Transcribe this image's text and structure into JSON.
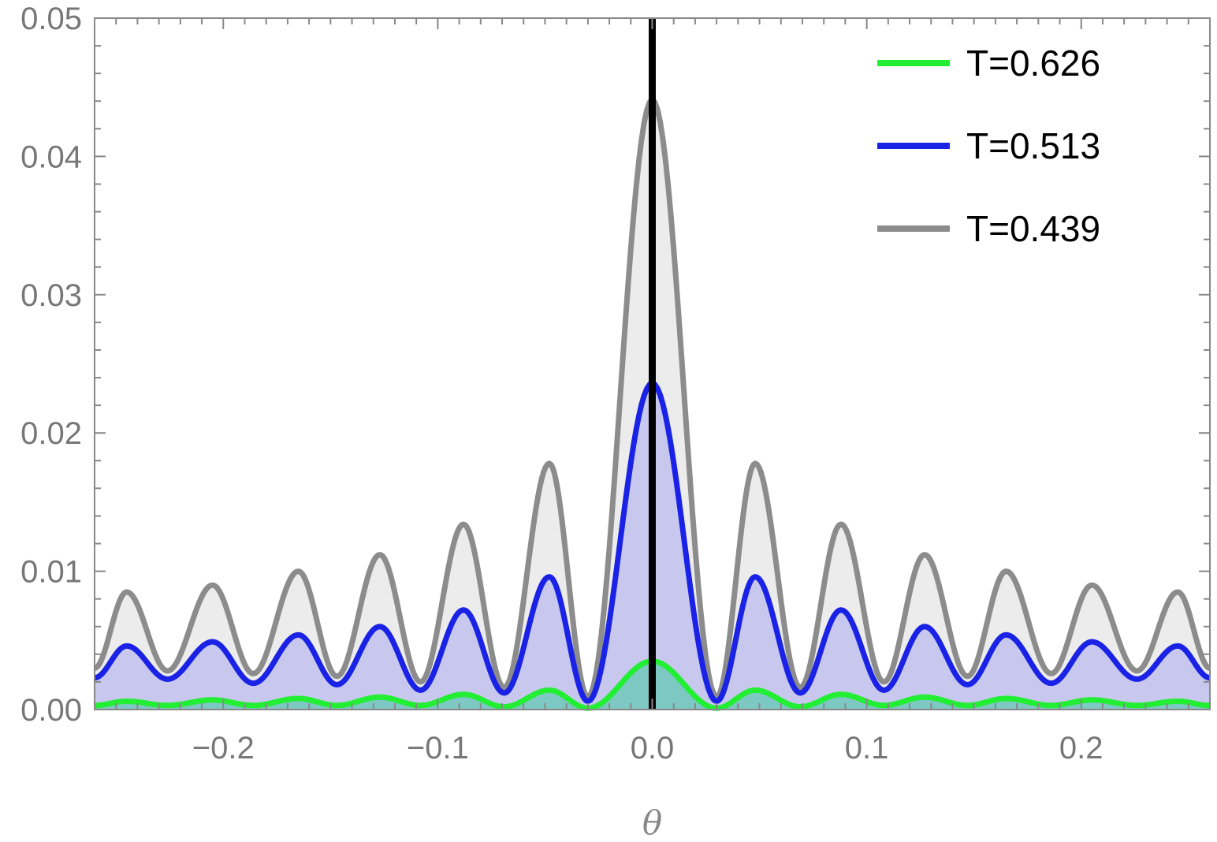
{
  "chart_data": {
    "type": "line",
    "title": "",
    "xlabel": "θ",
    "ylabel": "",
    "xlim": [
      -0.26,
      0.26
    ],
    "ylim": [
      0,
      0.05
    ],
    "x_ticks": [
      {
        "value": -0.2,
        "label": "−0.2"
      },
      {
        "value": -0.1,
        "label": "−0.1"
      },
      {
        "value": 0.0,
        "label": "0.0"
      },
      {
        "value": 0.1,
        "label": "0.1"
      },
      {
        "value": 0.2,
        "label": "0.2"
      }
    ],
    "y_ticks": [
      {
        "value": 0.0,
        "label": "0.00"
      },
      {
        "value": 0.01,
        "label": "0.01"
      },
      {
        "value": 0.02,
        "label": "0.02"
      },
      {
        "value": 0.03,
        "label": "0.03"
      },
      {
        "value": 0.04,
        "label": "0.04"
      },
      {
        "value": 0.05,
        "label": "0.05"
      }
    ],
    "grid": false,
    "legend_position": "top-right",
    "vertical_line_x": 0.0,
    "series": [
      {
        "name": "T=0.626",
        "color": "#22ee33",
        "fill": "#66c8b4",
        "x": [
          -0.26,
          -0.245,
          -0.226,
          -0.205,
          -0.186,
          -0.165,
          -0.147,
          -0.127,
          -0.108,
          -0.088,
          -0.069,
          -0.048,
          -0.03,
          0.0,
          0.03,
          0.048,
          0.069,
          0.088,
          0.108,
          0.127,
          0.147,
          0.165,
          0.186,
          0.205,
          0.226,
          0.245,
          0.26
        ],
        "y": [
          0.0003,
          0.0006,
          0.0003,
          0.0007,
          0.0003,
          0.0008,
          0.0003,
          0.0009,
          0.0003,
          0.0011,
          0.0002,
          0.0014,
          0.0001,
          0.0035,
          0.0001,
          0.0014,
          0.0002,
          0.0011,
          0.0003,
          0.0009,
          0.0003,
          0.0008,
          0.0003,
          0.0007,
          0.0003,
          0.0006,
          0.0003
        ]
      },
      {
        "name": "T=0.513",
        "color": "#1a22e6",
        "fill": "#c8c8ee",
        "x": [
          -0.26,
          -0.245,
          -0.226,
          -0.205,
          -0.186,
          -0.165,
          -0.147,
          -0.127,
          -0.108,
          -0.088,
          -0.069,
          -0.048,
          -0.03,
          0.0,
          0.03,
          0.048,
          0.069,
          0.088,
          0.108,
          0.127,
          0.147,
          0.165,
          0.186,
          0.205,
          0.226,
          0.245,
          0.26
        ],
        "y": [
          0.0023,
          0.0046,
          0.0022,
          0.0049,
          0.0019,
          0.0054,
          0.0018,
          0.006,
          0.0014,
          0.0072,
          0.0012,
          0.0096,
          0.0006,
          0.0236,
          0.0006,
          0.0096,
          0.0012,
          0.0072,
          0.0014,
          0.006,
          0.0018,
          0.0054,
          0.0019,
          0.0049,
          0.0022,
          0.0046,
          0.0023
        ]
      },
      {
        "name": "T=0.439",
        "color": "#8c8c8c",
        "fill": "#ececec",
        "x": [
          -0.26,
          -0.245,
          -0.226,
          -0.205,
          -0.186,
          -0.165,
          -0.147,
          -0.127,
          -0.108,
          -0.088,
          -0.069,
          -0.048,
          -0.03,
          0.0,
          0.03,
          0.048,
          0.069,
          0.088,
          0.108,
          0.127,
          0.147,
          0.165,
          0.186,
          0.205,
          0.226,
          0.245,
          0.26
        ],
        "y": [
          0.003,
          0.0085,
          0.0028,
          0.009,
          0.0026,
          0.01,
          0.0024,
          0.0112,
          0.002,
          0.0134,
          0.0016,
          0.0178,
          0.0009,
          0.0441,
          0.0009,
          0.0178,
          0.0016,
          0.0134,
          0.002,
          0.0112,
          0.0024,
          0.01,
          0.0026,
          0.009,
          0.0028,
          0.0085,
          0.003
        ]
      }
    ]
  }
}
